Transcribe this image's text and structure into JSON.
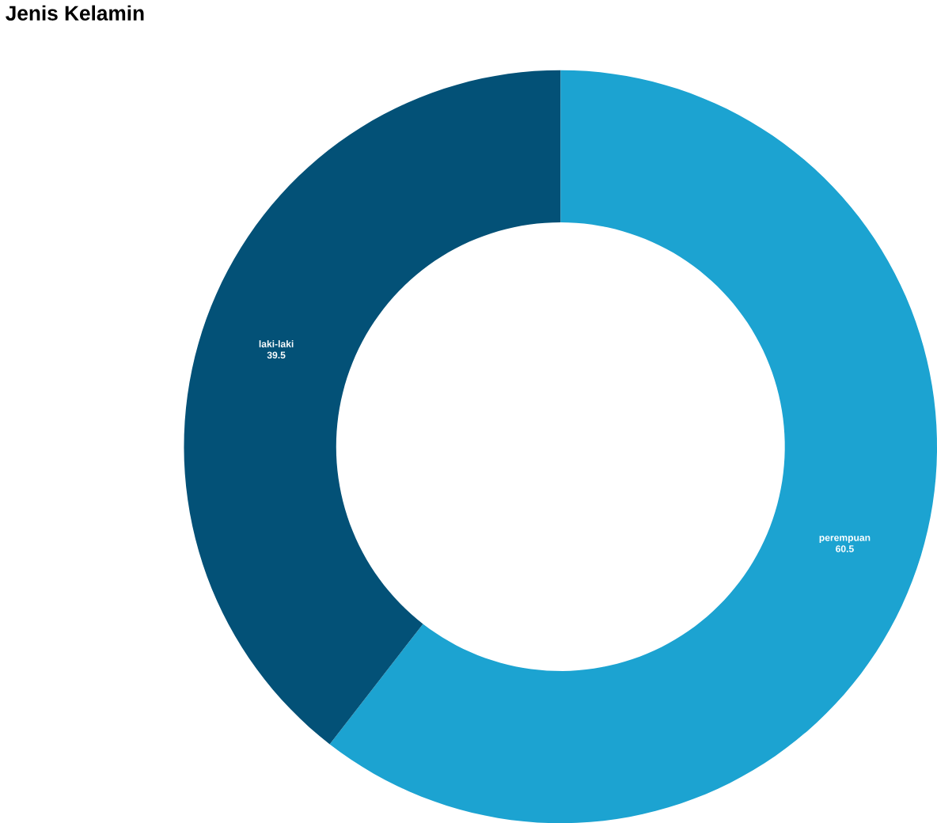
{
  "chart_data": {
    "type": "donut",
    "title": "Jenis Kelamin",
    "categories": [
      "perempuan",
      "laki-laki"
    ],
    "values": [
      60.5,
      39.5
    ],
    "colors": [
      "#1ca3d1",
      "#035177"
    ],
    "data_labels": true
  }
}
